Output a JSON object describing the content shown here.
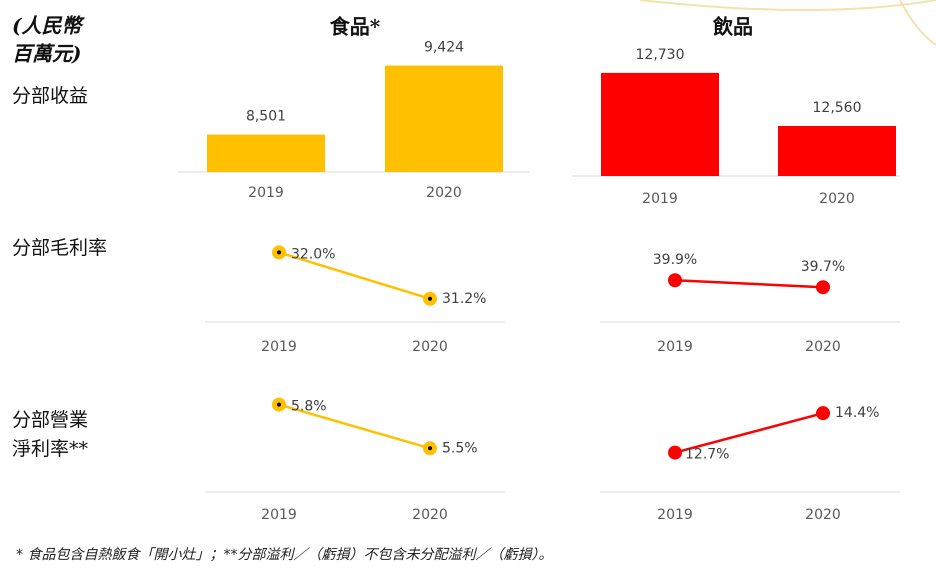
{
  "unit_label": [
    "(人民幣",
    "百萬元)"
  ],
  "column_headers": [
    "食品*",
    "飲品"
  ],
  "row_labels": [
    [
      "分部收益"
    ],
    [
      "分部毛利率"
    ],
    [
      "分部營業",
      "淨利率**"
    ]
  ],
  "footnote": "* 食品包含自熱飯食「開小灶」；**分部溢利／（虧損）不包含未分配溢利／（虧損）。",
  "chart_data": [
    {
      "type": "bar",
      "categories": [
        "2019",
        "2020"
      ],
      "values": [
        8501,
        9424
      ],
      "value_labels": [
        "8,501",
        "9,424"
      ],
      "color": "#FFC000",
      "ylim": [
        8000,
        9900
      ]
    },
    {
      "type": "bar",
      "categories": [
        "2019",
        "2020"
      ],
      "values": [
        12730,
        12560
      ],
      "value_labels": [
        "12,730",
        "12,560"
      ],
      "color": "#FF0000",
      "ylim": [
        12400,
        12800
      ]
    },
    {
      "type": "line",
      "categories": [
        "2019",
        "2020"
      ],
      "values": [
        32.0,
        31.2
      ],
      "value_labels": [
        "32.0%",
        "31.2%"
      ],
      "color": "#FFC000",
      "ylim": [
        30.8,
        32.3
      ]
    },
    {
      "type": "line",
      "categories": [
        "2019",
        "2020"
      ],
      "values": [
        39.9,
        39.7
      ],
      "value_labels": [
        "39.9%",
        "39.7%"
      ],
      "color": "#FF0000",
      "ylim": [
        38.7,
        41.2
      ]
    },
    {
      "type": "line",
      "categories": [
        "2019",
        "2020"
      ],
      "values": [
        5.8,
        5.5
      ],
      "value_labels": [
        "5.8%",
        "5.5%"
      ],
      "color": "#FFC000",
      "ylim": [
        5.2,
        5.9
      ]
    },
    {
      "type": "line",
      "categories": [
        "2019",
        "2020"
      ],
      "values": [
        12.7,
        14.4
      ],
      "value_labels": [
        "12.7%",
        "14.4%"
      ],
      "color": "#FF0000",
      "ylim": [
        11.0,
        15.4
      ]
    }
  ]
}
